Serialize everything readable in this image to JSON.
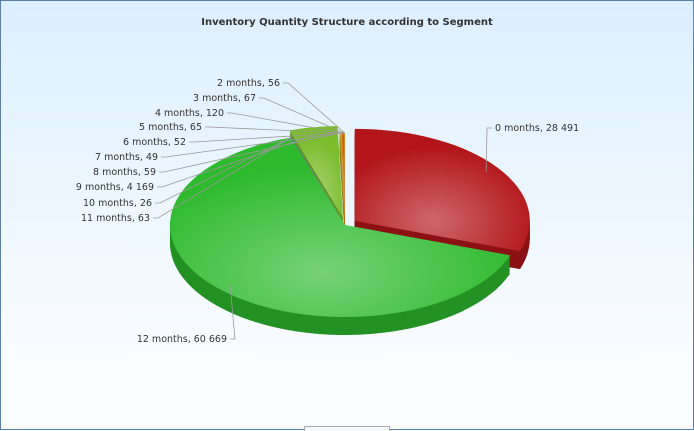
{
  "chart_data": {
    "type": "pie",
    "title": "Inventory Quantity Structure according to Segment",
    "style": "3d-exploded",
    "slices": [
      {
        "label": "0 months",
        "value": 28491,
        "display": "28 491",
        "color": "#b3161a",
        "exploded": true
      },
      {
        "label": "12 months",
        "value": 60669,
        "display": "60 669",
        "color": "#2dba2d"
      },
      {
        "label": "11 months",
        "value": 63,
        "display": "63",
        "color": "#3a9d8c"
      },
      {
        "label": "10 months",
        "value": 26,
        "display": "26",
        "color": "#5f6bbf"
      },
      {
        "label": "9 months",
        "value": 4169,
        "display": "4 169",
        "color": "#7cbd2e",
        "exploded": true
      },
      {
        "label": "8 months",
        "value": 59,
        "display": "59",
        "color": "#9e9a22"
      },
      {
        "label": "7 months",
        "value": 49,
        "display": "49",
        "color": "#c9a11e"
      },
      {
        "label": "6 months",
        "value": 52,
        "display": "52",
        "color": "#e0a020"
      },
      {
        "label": "5 months",
        "value": 65,
        "display": "65",
        "color": "#e38a1e"
      },
      {
        "label": "4 months",
        "value": 120,
        "display": "120",
        "color": "#d46a1c"
      },
      {
        "label": "3 months",
        "value": 67,
        "display": "67",
        "color": "#c9561c"
      },
      {
        "label": "2 months",
        "value": 56,
        "display": "56",
        "color": "#d8a21c"
      }
    ]
  }
}
